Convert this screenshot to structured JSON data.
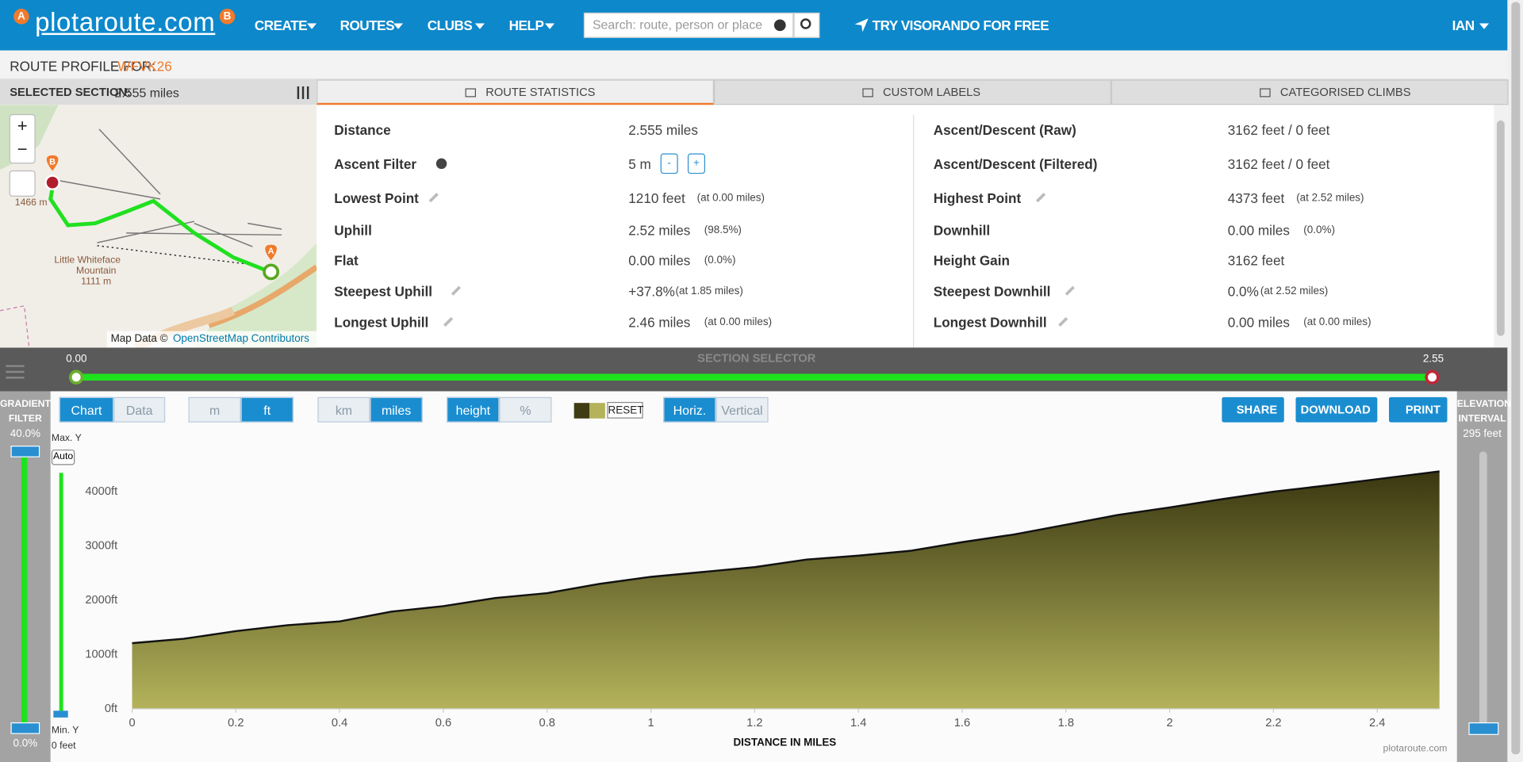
{
  "header": {
    "logo": "plotaroute.com",
    "logo_pins": [
      "A",
      "B"
    ],
    "nav": [
      "CREATE",
      "ROUTES",
      "CLUBS",
      "HELP"
    ],
    "search_placeholder": "Search: route, person or place",
    "promo": "TRY VISORANDO FOR FREE",
    "user": "IAN"
  },
  "profile": {
    "label": "ROUTE PROFILE FOR:",
    "route_id": "WFVK26"
  },
  "map": {
    "selected_label": "SELECTED SECTION:",
    "selected_value": "2.555 miles",
    "labels": [
      "Little Whiteface",
      "Mountain",
      "1111 m",
      "1466 m"
    ],
    "markers": [
      "A",
      "B"
    ],
    "zoom": [
      "+",
      "−"
    ],
    "attribution": "Map Data ©",
    "attribution_link": "OpenStreetMap Contributors"
  },
  "tabs": [
    "ROUTE STATISTICS",
    "CUSTOM LABELS",
    "CATEGORISED CLIMBS"
  ],
  "stats": {
    "left": [
      {
        "label": "Distance",
        "value": "2.555 miles"
      },
      {
        "label": "Ascent Filter",
        "value": "5 m",
        "icon": "info",
        "buttons": [
          "-",
          "+"
        ]
      },
      {
        "label": "Lowest Point",
        "value": "1210 feet",
        "note": "(at 0.00 miles)",
        "icon": "edit"
      },
      {
        "label": "Uphill",
        "value": "2.52 miles",
        "note": "(98.5%)"
      },
      {
        "label": "Flat",
        "value": "0.00 miles",
        "note": "(0.0%)"
      },
      {
        "label": "Steepest Uphill",
        "value": "+37.8%",
        "note": "(at 1.85 miles)",
        "icon": "edit"
      },
      {
        "label": "Longest Uphill",
        "value": "2.46 miles",
        "note": "(at 0.00 miles)",
        "icon": "edit"
      }
    ],
    "right": [
      {
        "label": "Ascent/Descent (Raw)",
        "value": "3162 feet / 0 feet"
      },
      {
        "label": "Ascent/Descent (Filtered)",
        "value": "3162 feet / 0 feet"
      },
      {
        "label": "Highest Point",
        "value": "4373 feet",
        "note": "(at 2.52 miles)",
        "icon": "edit"
      },
      {
        "label": "Downhill",
        "value": "0.00 miles",
        "note": "(0.0%)"
      },
      {
        "label": "Height Gain",
        "value": "3162 feet"
      },
      {
        "label": "Steepest Downhill",
        "value": "0.0%",
        "note": "(at 2.52 miles)",
        "icon": "edit"
      },
      {
        "label": "Longest Downhill",
        "value": "0.00 miles",
        "note": "(at 0.00 miles)",
        "icon": "edit"
      }
    ]
  },
  "selector": {
    "title": "SECTION SELECTOR",
    "start": "0.00",
    "end": "2.55"
  },
  "toolbar": {
    "groups": [
      [
        {
          "label": "Chart",
          "active": true
        },
        {
          "label": "Data"
        }
      ],
      [
        {
          "label": "m"
        },
        {
          "label": "ft",
          "active": true
        }
      ],
      [
        {
          "label": "km"
        },
        {
          "label": "miles",
          "active": true
        }
      ],
      [
        {
          "label": "height",
          "active": true
        },
        {
          "label": "%"
        }
      ],
      [
        {
          "label": "Horiz.",
          "active": true
        },
        {
          "label": "Vertical"
        }
      ]
    ],
    "reset": "RESET",
    "actions": [
      "SHARE",
      "DOWNLOAD",
      "PRINT"
    ]
  },
  "gradient_filter": {
    "title": "GRADIENT FILTER",
    "max": "40.0%",
    "min": "0.0%"
  },
  "elevation_interval": {
    "title": "ELEVATION INTERVAL",
    "value": "295 feet"
  },
  "y_control": {
    "max_label": "Max. Y",
    "auto": "Auto",
    "min_label": "Min. Y",
    "min_value": "0 feet"
  },
  "chart_data": {
    "type": "area",
    "xlabel": "DISTANCE IN MILES",
    "credit": "plotaroute.com",
    "x": [
      0,
      0.1,
      0.2,
      0.3,
      0.4,
      0.5,
      0.6,
      0.7,
      0.8,
      0.9,
      1.0,
      1.1,
      1.2,
      1.3,
      1.4,
      1.5,
      1.6,
      1.7,
      1.8,
      1.9,
      2.0,
      2.1,
      2.2,
      2.3,
      2.4,
      2.52
    ],
    "values": [
      1210,
      1290,
      1430,
      1540,
      1610,
      1790,
      1890,
      2040,
      2130,
      2300,
      2430,
      2520,
      2610,
      2750,
      2820,
      2910,
      3070,
      3210,
      3390,
      3570,
      3710,
      3860,
      4000,
      4110,
      4230,
      4373
    ],
    "color_top": "#3a3711",
    "color_bottom": "#b4b35b",
    "line_color": "#111111",
    "xlim": [
      0,
      2.52
    ],
    "ylim": [
      0,
      4400
    ],
    "xticks": [
      0,
      0.2,
      0.4,
      0.6,
      0.8,
      1,
      1.2,
      1.4,
      1.6,
      1.8,
      2,
      2.2,
      2.4
    ],
    "yticks": [
      {
        "value": 0,
        "label": "0ft"
      },
      {
        "value": 1000,
        "label": "1000ft"
      },
      {
        "value": 2000,
        "label": "2000ft"
      },
      {
        "value": 3000,
        "label": "3000ft"
      },
      {
        "value": 4000,
        "label": "4000ft"
      }
    ],
    "grid": false
  }
}
